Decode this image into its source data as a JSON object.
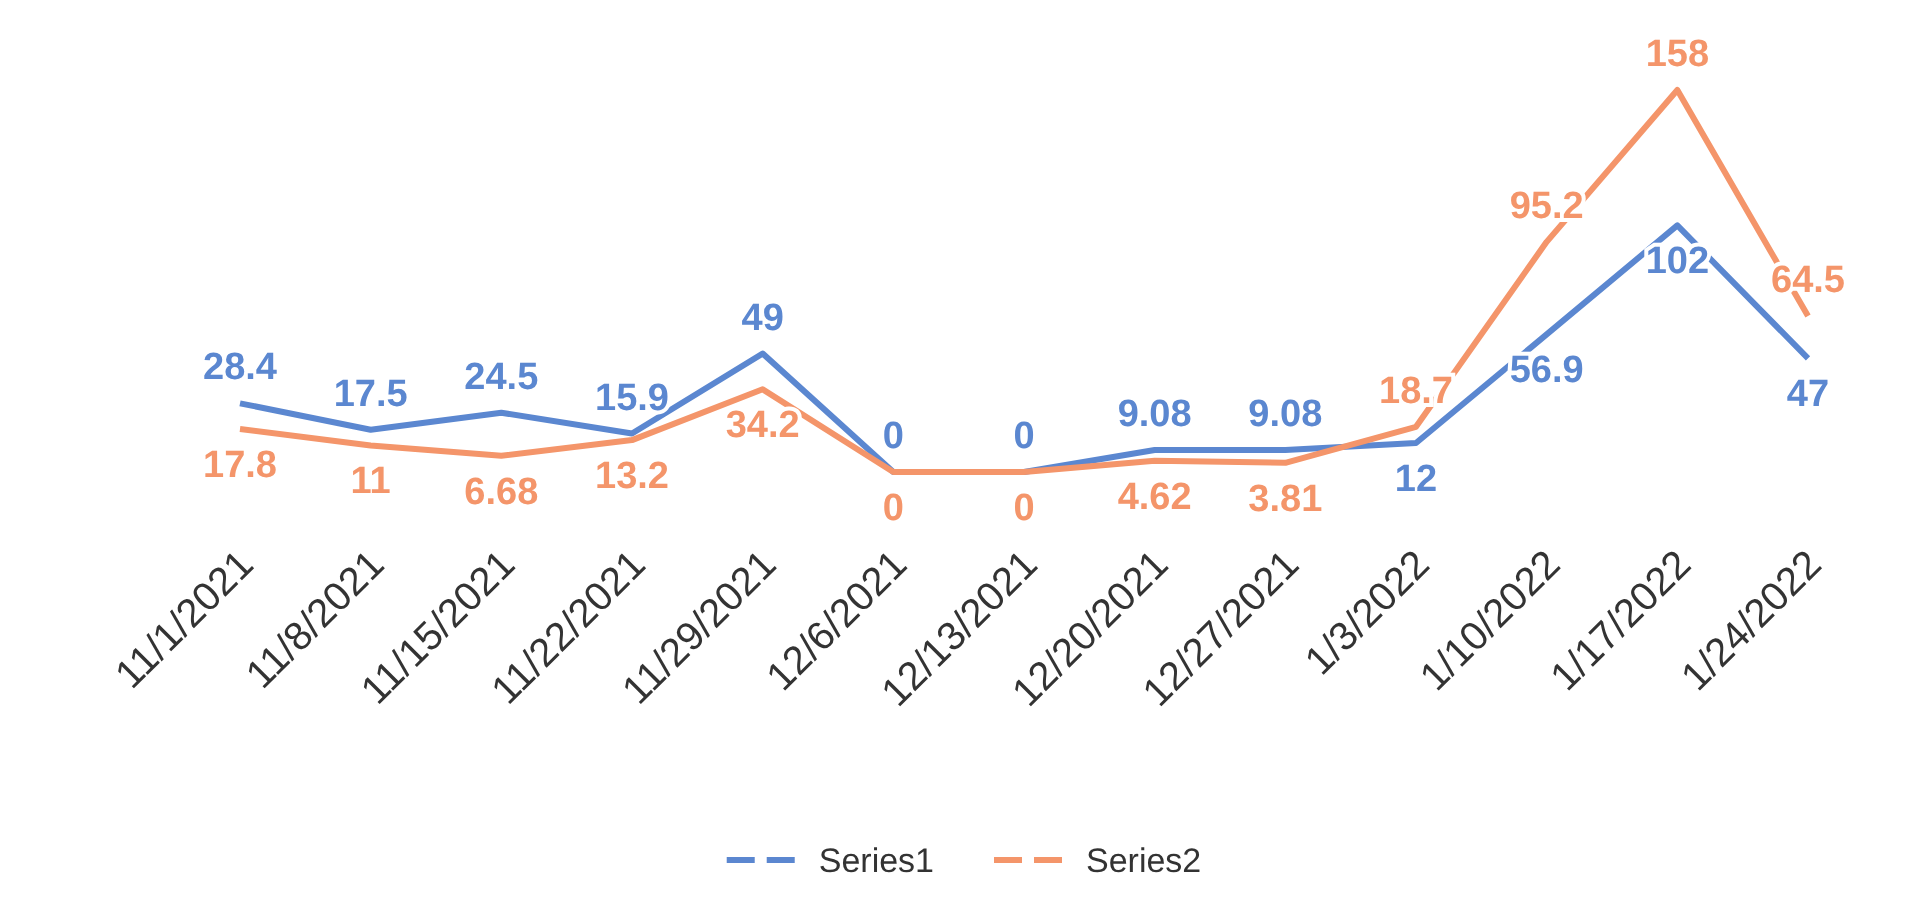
{
  "chart_data": {
    "type": "line",
    "categories": [
      "11/1/2021",
      "11/8/2021",
      "11/15/2021",
      "11/22/2021",
      "11/29/2021",
      "12/6/2021",
      "12/13/2021",
      "12/20/2021",
      "12/27/2021",
      "1/3/2022",
      "1/10/2022",
      "1/17/2022",
      "1/24/2022"
    ],
    "series": [
      {
        "name": "Series1",
        "color": "#5b87d0",
        "values": [
          28.4,
          17.5,
          24.5,
          15.9,
          49,
          0,
          0,
          9.08,
          9.08,
          12,
          56.9,
          102,
          47
        ]
      },
      {
        "name": "Series2",
        "color": "#f4956a",
        "values": [
          17.8,
          11,
          6.68,
          13.2,
          34.2,
          0,
          0,
          4.62,
          3.81,
          18.7,
          95.2,
          158,
          64.5
        ]
      }
    ],
    "data_labels": true,
    "legend": "bottom",
    "line_style": "solid",
    "marker": "none",
    "grid": false
  }
}
